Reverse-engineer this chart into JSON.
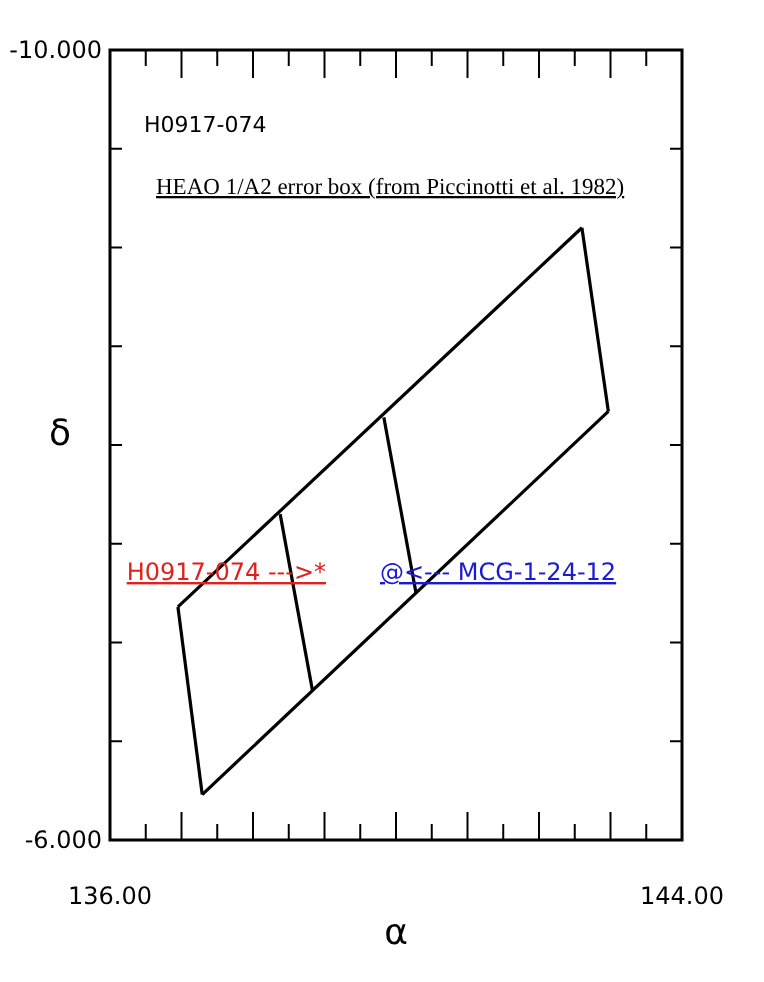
{
  "chart_data": {
    "type": "line",
    "title": "HEAO 1/A2 error box (from Piccinotti et al. 1982)",
    "subtitle": "H0917-074",
    "xlabel": "α",
    "ylabel": "δ",
    "xlim": [
      136,
      144
    ],
    "ylim": [
      -6,
      -10
    ],
    "xticks": [
      {
        "value": 136,
        "label": "136.00"
      },
      {
        "value": 136.5,
        "label": null
      },
      {
        "value": 137,
        "label": null
      },
      {
        "value": 137.5,
        "label": null
      },
      {
        "value": 138,
        "label": null
      },
      {
        "value": 138.5,
        "label": null
      },
      {
        "value": 139,
        "label": null
      },
      {
        "value": 139.5,
        "label": null
      },
      {
        "value": 140,
        "label": null
      },
      {
        "value": 140.5,
        "label": null
      },
      {
        "value": 141,
        "label": null
      },
      {
        "value": 141.5,
        "label": null
      },
      {
        "value": 142,
        "label": null
      },
      {
        "value": 142.5,
        "label": null
      },
      {
        "value": 143,
        "label": null
      },
      {
        "value": 143.5,
        "label": null
      },
      {
        "value": 144,
        "label": "144.00"
      }
    ],
    "yticks": [
      {
        "value": -10,
        "label": "-10.000"
      },
      {
        "value": -9.5,
        "label": null
      },
      {
        "value": -9,
        "label": null
      },
      {
        "value": -8.5,
        "label": null
      },
      {
        "value": -8,
        "label": null
      },
      {
        "value": -7.5,
        "label": null
      },
      {
        "value": -7,
        "label": null
      },
      {
        "value": -6.5,
        "label": null
      },
      {
        "value": -6,
        "label": "-6.000"
      }
    ],
    "series": [
      {
        "color": "#000000",
        "x": [
          136.95,
          142.6
        ],
        "values": [
          -7.18,
          -9.1
        ]
      },
      {
        "color": "#000000",
        "x": [
          142.6,
          142.97
        ],
        "values": [
          -9.1,
          -8.17
        ]
      },
      {
        "color": "#000000",
        "x": [
          137.29,
          142.97
        ],
        "values": [
          -6.23,
          -8.17
        ]
      },
      {
        "color": "#000000",
        "x": [
          136.95,
          137.29
        ],
        "values": [
          -7.18,
          -6.23
        ]
      },
      {
        "color": "#000000",
        "x": [
          138.38,
          138.83
        ],
        "values": [
          -7.65,
          -6.76
        ]
      },
      {
        "color": "#000000",
        "x": [
          139.83,
          140.28
        ],
        "values": [
          -8.14,
          -7.25
        ]
      }
    ],
    "annotations": [
      "H0917-074 --->*",
      "@<--- MCG-1-24-12"
    ],
    "grid": false,
    "marker": "none",
    "line_style": "solid"
  }
}
